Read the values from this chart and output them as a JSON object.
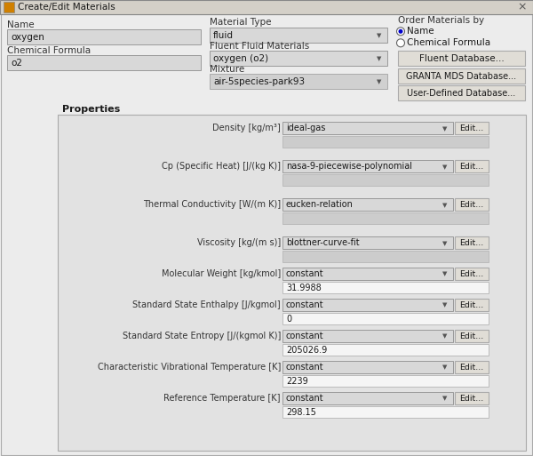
{
  "title": "Create/Edit Materials",
  "bg_color": "#f0f0f0",
  "dialog_bg": "#ececec",
  "titlebar_bg": "#d4d0c8",
  "field_bg_gray": "#d8d8d8",
  "field_bg_white": "#ffffff",
  "field_bg_light": "#f0f0f0",
  "border_color": "#999999",
  "border_dark": "#888888",
  "text_dark": "#1a1a1a",
  "text_mid": "#333333",
  "btn_bg": "#e0ddd6",
  "name_label": "Name",
  "name_value": "oxygen",
  "chem_label": "Chemical Formula",
  "chem_value": "o2",
  "mat_type_label": "Material Type",
  "mat_type_value": "fluid",
  "fluent_fluid_label": "Fluent Fluid Materials",
  "fluent_fluid_value": "oxygen (o2)",
  "mixture_label": "Mixture",
  "mixture_value": "air-5species-park93",
  "order_label": "Order Materials by",
  "order_opt1": "Name",
  "order_opt2": "Chemical Formula",
  "btn1": "Fluent Database...",
  "btn2": "GRANTA MDS Database...",
  "btn3": "User-Defined Database...",
  "props_label": "Properties",
  "properties": [
    {
      "label": "Density [kg/m³]",
      "method": "ideal-gas",
      "value": null
    },
    {
      "label": "Cp (Specific Heat) [J/(kg K)]",
      "method": "nasa-9-piecewise-polynomial",
      "value": null
    },
    {
      "label": "Thermal Conductivity [W/(m K)]",
      "method": "eucken-relation",
      "value": null
    },
    {
      "label": "Viscosity [kg/(m s)]",
      "method": "blottner-curve-fit",
      "value": null
    },
    {
      "label": "Molecular Weight [kg/kmol]",
      "method": "constant",
      "value": "31.9988"
    },
    {
      "label": "Standard State Enthalpy [J/kgmol]",
      "method": "constant",
      "value": "0"
    },
    {
      "label": "Standard State Entropy [J/(kgmol K)]",
      "method": "constant",
      "value": "205026.9"
    },
    {
      "label": "Characteristic Vibrational Temperature [K]",
      "method": "constant",
      "value": "2239"
    },
    {
      "label": "Reference Temperature [K]",
      "method": "constant",
      "value": "298.15"
    }
  ]
}
